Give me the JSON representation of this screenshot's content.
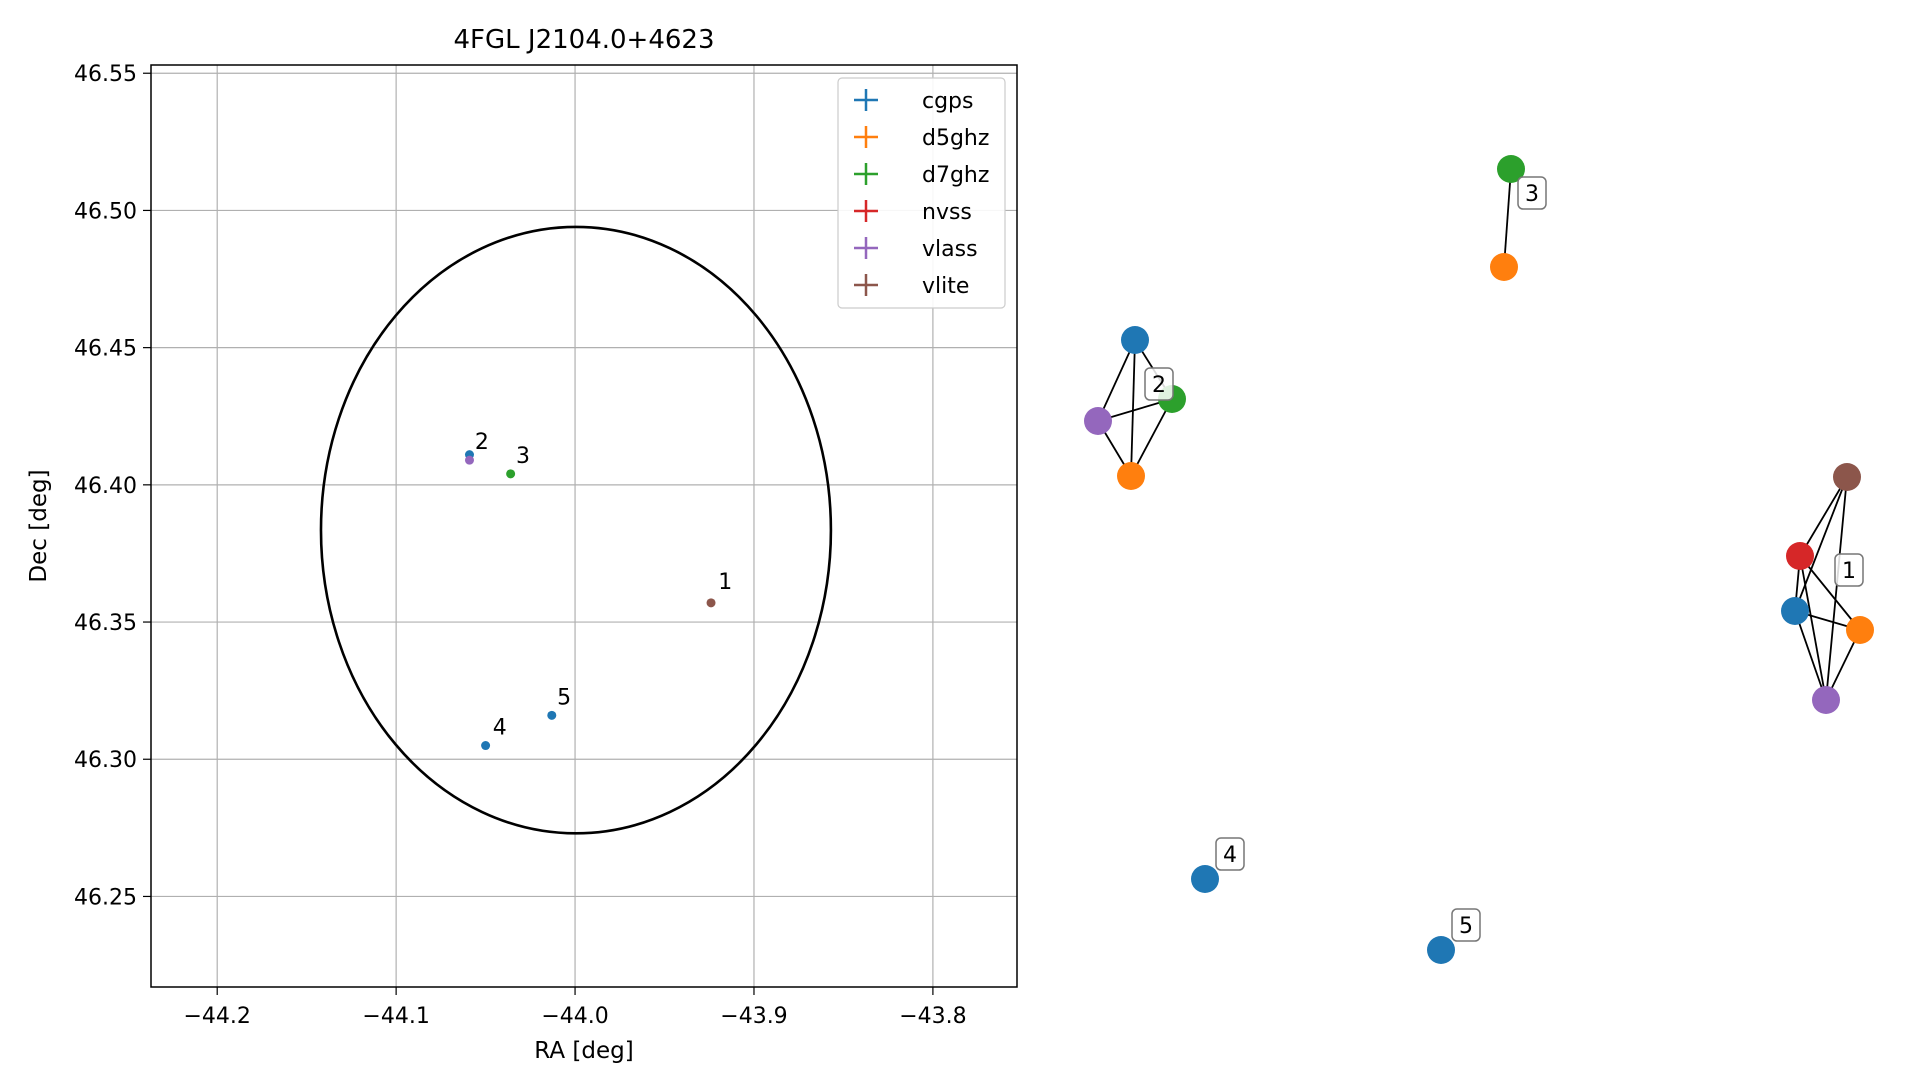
{
  "chart_data": [
    {
      "type": "scatter",
      "title": "4FGL J2104.0+4623",
      "xlabel": "RA [deg]",
      "ylabel": "Dec [deg]",
      "xlim": [
        -44.237,
        -43.753
      ],
      "ylim": [
        46.217,
        46.553
      ],
      "grid": true,
      "legend_placement": "top-right",
      "xticks": [
        -44.2,
        -44.1,
        -44.0,
        -43.9,
        -43.8
      ],
      "xtick_labels": [
        "−44.2",
        "−44.1",
        "−44.0",
        "−43.9",
        "−43.8"
      ],
      "yticks": [
        46.25,
        46.3,
        46.35,
        46.4,
        46.45,
        46.5,
        46.55
      ],
      "ytick_labels": [
        "46.25",
        "46.30",
        "46.35",
        "46.40",
        "46.45",
        "46.50",
        "46.55"
      ],
      "series": [
        {
          "name": "cgps",
          "color": "#1f77b4",
          "points": [
            {
              "x": -44.059,
              "y": 46.411
            },
            {
              "x": -44.05,
              "y": 46.305
            },
            {
              "x": -44.013,
              "y": 46.316
            }
          ]
        },
        {
          "name": "d5ghz",
          "color": "#ff7f0e",
          "points": []
        },
        {
          "name": "d7ghz",
          "color": "#2ca02c",
          "points": [
            {
              "x": -44.036,
              "y": 46.404
            }
          ]
        },
        {
          "name": "nvss",
          "color": "#d62728",
          "points": []
        },
        {
          "name": "vlass",
          "color": "#9467bd",
          "points": [
            {
              "x": -44.059,
              "y": 46.409
            }
          ]
        },
        {
          "name": "vlite",
          "color": "#8c564b",
          "points": [
            {
              "x": -43.924,
              "y": 46.357
            }
          ]
        }
      ],
      "annotations": [
        {
          "text": "1",
          "x": -43.92,
          "y": 46.362
        },
        {
          "text": "2",
          "x": -44.056,
          "y": 46.413
        },
        {
          "text": "3",
          "x": -44.033,
          "y": 46.408
        },
        {
          "text": "4",
          "x": -44.046,
          "y": 46.309
        },
        {
          "text": "5",
          "x": -44.01,
          "y": 46.32
        }
      ],
      "ellipse": {
        "center_ra": -43.9995,
        "center_dec": 46.3835,
        "semi_ra": 0.1425,
        "semi_dec": 0.1105,
        "color": "#000000"
      }
    },
    {
      "type": "network",
      "clusters": [
        {
          "label": "1",
          "nodes": [
            {
              "id": "vlite",
              "color": "#8c564b"
            },
            {
              "id": "nvss",
              "color": "#d62728"
            },
            {
              "id": "cgps",
              "color": "#1f77b4"
            },
            {
              "id": "d5ghz",
              "color": "#ff7f0e"
            },
            {
              "id": "vlass",
              "color": "#9467bd"
            }
          ]
        },
        {
          "label": "2",
          "nodes": [
            {
              "id": "cgps",
              "color": "#1f77b4"
            },
            {
              "id": "d7ghz",
              "color": "#2ca02c"
            },
            {
              "id": "vlass",
              "color": "#9467bd"
            },
            {
              "id": "d5ghz",
              "color": "#ff7f0e"
            }
          ]
        },
        {
          "label": "3",
          "nodes": [
            {
              "id": "d7ghz",
              "color": "#2ca02c"
            },
            {
              "id": "d5ghz",
              "color": "#ff7f0e"
            }
          ]
        },
        {
          "label": "4",
          "nodes": [
            {
              "id": "cgps",
              "color": "#1f77b4"
            }
          ]
        },
        {
          "label": "5",
          "nodes": [
            {
              "id": "cgps",
              "color": "#1f77b4"
            }
          ]
        }
      ]
    }
  ]
}
